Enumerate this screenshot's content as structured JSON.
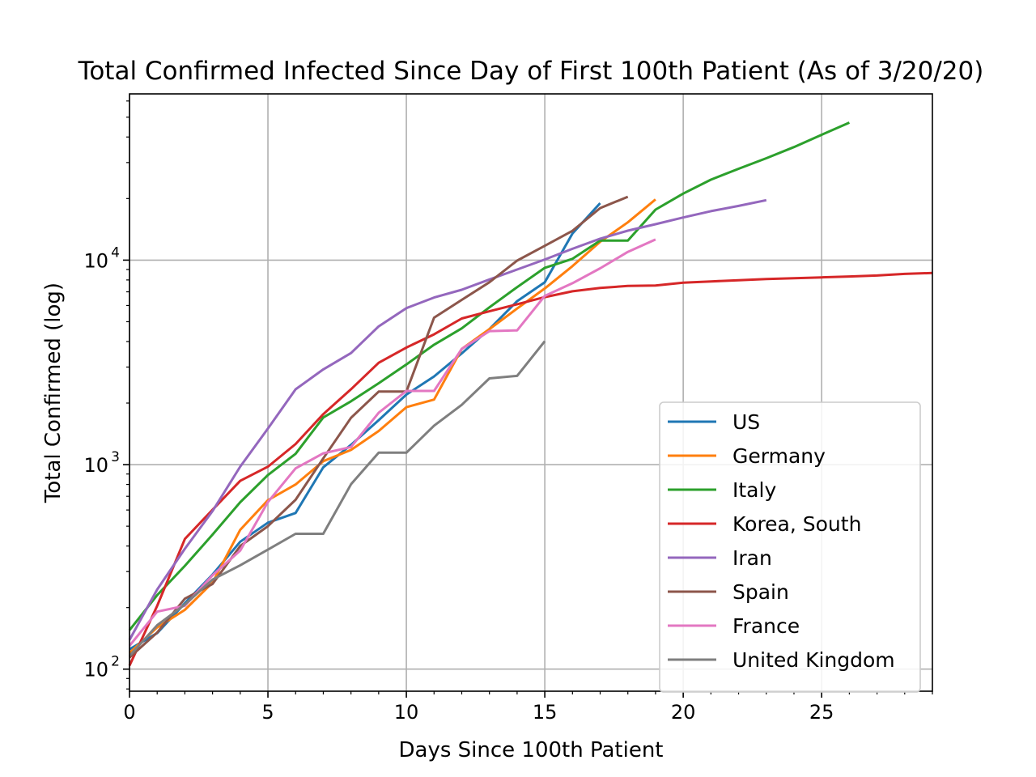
{
  "chart_data": {
    "type": "line",
    "title": "Total Confirmed Infected Since Day of First 100th Patient (As of 3/20/20)",
    "xlabel": "Days Since 100th Patient",
    "ylabel": "Total Confirmed (log)",
    "xlim": [
      0,
      29
    ],
    "ylim": [
      78,
      65000
    ],
    "yscale": "log",
    "grid": true,
    "legend_position": "lower-right",
    "x_ticks": [
      0,
      5,
      10,
      15,
      20,
      25
    ],
    "y_ticks": [
      {
        "value": 100,
        "base": "10",
        "exp": "2"
      },
      {
        "value": 1000,
        "base": "10",
        "exp": "3"
      },
      {
        "value": 10000,
        "base": "10",
        "exp": "4"
      }
    ],
    "series": [
      {
        "name": "US",
        "color": "#1f77b4",
        "values": [
          [
            0,
            125
          ],
          [
            1,
            150
          ],
          [
            2,
            210
          ],
          [
            3,
            290
          ],
          [
            4,
            420
          ],
          [
            5,
            520
          ],
          [
            6,
            580
          ],
          [
            7,
            970
          ],
          [
            8,
            1250
          ],
          [
            9,
            1650
          ],
          [
            10,
            2200
          ],
          [
            11,
            2700
          ],
          [
            12,
            3500
          ],
          [
            13,
            4600
          ],
          [
            14,
            6300
          ],
          [
            15,
            7800
          ],
          [
            16,
            13500
          ],
          [
            17,
            19000
          ]
        ]
      },
      {
        "name": "Germany",
        "color": "#ff7f0e",
        "values": [
          [
            0,
            120
          ],
          [
            1,
            160
          ],
          [
            2,
            195
          ],
          [
            3,
            265
          ],
          [
            4,
            480
          ],
          [
            5,
            670
          ],
          [
            6,
            800
          ],
          [
            7,
            1040
          ],
          [
            8,
            1180
          ],
          [
            9,
            1460
          ],
          [
            10,
            1910
          ],
          [
            11,
            2080
          ],
          [
            12,
            3680
          ],
          [
            13,
            4600
          ],
          [
            14,
            5800
          ],
          [
            15,
            7270
          ],
          [
            16,
            9350
          ],
          [
            17,
            12300
          ],
          [
            18,
            15300
          ],
          [
            19,
            19800
          ]
        ]
      },
      {
        "name": "Italy",
        "color": "#2ca02c",
        "values": [
          [
            0,
            155
          ],
          [
            1,
            230
          ],
          [
            2,
            320
          ],
          [
            3,
            455
          ],
          [
            4,
            655
          ],
          [
            5,
            890
          ],
          [
            6,
            1130
          ],
          [
            7,
            1700
          ],
          [
            8,
            2040
          ],
          [
            9,
            2500
          ],
          [
            10,
            3090
          ],
          [
            11,
            3860
          ],
          [
            12,
            4640
          ],
          [
            13,
            5880
          ],
          [
            14,
            7375
          ],
          [
            15,
            9170
          ],
          [
            16,
            10150
          ],
          [
            17,
            12460
          ],
          [
            18,
            12460
          ],
          [
            19,
            17660
          ],
          [
            20,
            21160
          ],
          [
            21,
            24750
          ],
          [
            22,
            27980
          ],
          [
            23,
            31510
          ],
          [
            24,
            35710
          ],
          [
            25,
            41040
          ],
          [
            26,
            47020
          ]
        ]
      },
      {
        "name": "Korea, South",
        "color": "#d62728",
        "values": [
          [
            0,
            104
          ],
          [
            1,
            204
          ],
          [
            2,
            433
          ],
          [
            3,
            602
          ],
          [
            4,
            833
          ],
          [
            5,
            977
          ],
          [
            6,
            1261
          ],
          [
            7,
            1766
          ],
          [
            8,
            2337
          ],
          [
            9,
            3150
          ],
          [
            10,
            3736
          ],
          [
            11,
            4335
          ],
          [
            12,
            5186
          ],
          [
            13,
            5621
          ],
          [
            14,
            6088
          ],
          [
            15,
            6593
          ],
          [
            16,
            7041
          ],
          [
            17,
            7314
          ],
          [
            18,
            7478
          ],
          [
            19,
            7513
          ],
          [
            20,
            7755
          ],
          [
            21,
            7869
          ],
          [
            22,
            7979
          ],
          [
            23,
            8086
          ],
          [
            24,
            8162
          ],
          [
            25,
            8236
          ],
          [
            26,
            8320
          ],
          [
            27,
            8413
          ],
          [
            28,
            8565
          ],
          [
            29,
            8652
          ]
        ]
      },
      {
        "name": "Iran",
        "color": "#9467bd",
        "values": [
          [
            0,
            139
          ],
          [
            1,
            245
          ],
          [
            2,
            388
          ],
          [
            3,
            593
          ],
          [
            4,
            978
          ],
          [
            5,
            1501
          ],
          [
            6,
            2336
          ],
          [
            7,
            2922
          ],
          [
            8,
            3513
          ],
          [
            9,
            4747
          ],
          [
            10,
            5823
          ],
          [
            11,
            6566
          ],
          [
            12,
            7161
          ],
          [
            13,
            8042
          ],
          [
            14,
            9000
          ],
          [
            15,
            10075
          ],
          [
            16,
            11364
          ],
          [
            17,
            12729
          ],
          [
            18,
            13938
          ],
          [
            19,
            14991
          ],
          [
            20,
            16169
          ],
          [
            21,
            17361
          ],
          [
            22,
            18407
          ],
          [
            23,
            19644
          ]
        ]
      },
      {
        "name": "Spain",
        "color": "#8c564b",
        "values": [
          [
            0,
            114
          ],
          [
            1,
            151
          ],
          [
            2,
            221
          ],
          [
            3,
            261
          ],
          [
            4,
            400
          ],
          [
            5,
            500
          ],
          [
            6,
            673
          ],
          [
            7,
            1073
          ],
          [
            8,
            1695
          ],
          [
            9,
            2277
          ],
          [
            10,
            2277
          ],
          [
            11,
            5232
          ],
          [
            12,
            6391
          ],
          [
            13,
            7798
          ],
          [
            14,
            9942
          ],
          [
            15,
            11748
          ],
          [
            16,
            13910
          ],
          [
            17,
            17963
          ],
          [
            18,
            20410
          ]
        ]
      },
      {
        "name": "France",
        "color": "#e377c2",
        "values": [
          [
            0,
            130
          ],
          [
            1,
            191
          ],
          [
            2,
            204
          ],
          [
            3,
            288
          ],
          [
            4,
            380
          ],
          [
            5,
            656
          ],
          [
            6,
            959
          ],
          [
            7,
            1136
          ],
          [
            8,
            1219
          ],
          [
            9,
            1794
          ],
          [
            10,
            2293
          ],
          [
            11,
            2293
          ],
          [
            12,
            3681
          ],
          [
            13,
            4496
          ],
          [
            14,
            4532
          ],
          [
            15,
            6683
          ],
          [
            16,
            7715
          ],
          [
            17,
            9124
          ],
          [
            18,
            10970
          ],
          [
            19,
            12612
          ]
        ]
      },
      {
        "name": "United Kingdom",
        "color": "#7f7f7f",
        "values": [
          [
            0,
            116
          ],
          [
            1,
            164
          ],
          [
            2,
            207
          ],
          [
            3,
            274
          ],
          [
            4,
            322
          ],
          [
            5,
            384
          ],
          [
            6,
            459
          ],
          [
            7,
            459
          ],
          [
            8,
            802
          ],
          [
            9,
            1144
          ],
          [
            10,
            1144
          ],
          [
            11,
            1551
          ],
          [
            12,
            1960
          ],
          [
            13,
            2642
          ],
          [
            14,
            2716
          ],
          [
            15,
            4014
          ]
        ]
      }
    ]
  }
}
